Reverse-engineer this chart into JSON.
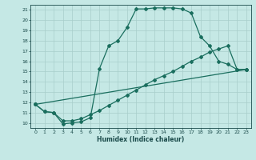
{
  "xlabel": "Humidex (Indice chaleur)",
  "bg_color": "#c5e8e5",
  "line_color": "#1a6e5e",
  "grid_color": "#a8ceca",
  "xlim": [
    -0.5,
    23.5
  ],
  "ylim": [
    9.5,
    21.5
  ],
  "xticks": [
    0,
    1,
    2,
    3,
    4,
    5,
    6,
    7,
    8,
    9,
    10,
    11,
    12,
    13,
    14,
    15,
    16,
    17,
    18,
    19,
    20,
    21,
    22,
    23
  ],
  "yticks": [
    10,
    11,
    12,
    13,
    14,
    15,
    16,
    17,
    18,
    19,
    20,
    21
  ],
  "line1_x": [
    0,
    1,
    2,
    3,
    4,
    5,
    6,
    7,
    8,
    9,
    10,
    11,
    12,
    13,
    14,
    15,
    16,
    17,
    18,
    19,
    20,
    21,
    22,
    23
  ],
  "line1_y": [
    11.8,
    11.1,
    11.0,
    9.9,
    10.0,
    10.1,
    10.5,
    15.3,
    17.5,
    18.0,
    19.3,
    21.1,
    21.1,
    21.2,
    21.2,
    21.2,
    21.1,
    20.7,
    18.4,
    17.5,
    16.0,
    15.7,
    15.2,
    15.2
  ],
  "line2_x": [
    0,
    23
  ],
  "line2_y": [
    11.8,
    15.2
  ],
  "line3_x": [
    0,
    1,
    2,
    3,
    4,
    5,
    6,
    7,
    8,
    9,
    10,
    11,
    12,
    13,
    14,
    15,
    16,
    17,
    18,
    19,
    20,
    21,
    22,
    23
  ],
  "line3_y": [
    11.8,
    11.1,
    11.0,
    10.2,
    10.2,
    10.4,
    10.8,
    11.2,
    11.7,
    12.2,
    12.7,
    13.2,
    13.7,
    14.2,
    14.6,
    15.0,
    15.5,
    16.0,
    16.4,
    16.9,
    17.2,
    17.5,
    15.2,
    15.2
  ]
}
